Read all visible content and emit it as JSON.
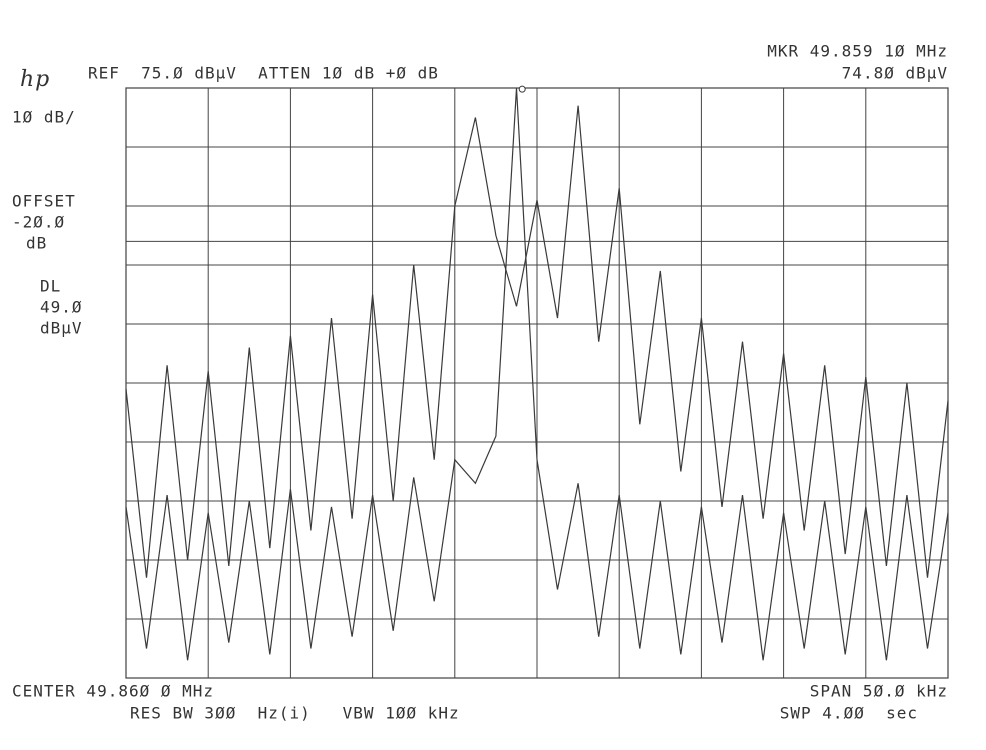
{
  "chart_data": {
    "type": "line",
    "logo": "hp",
    "header_left": "REF  75.Ø dBµV  ATTEN 1Ø dB +Ø dB",
    "marker_label": "MKR 49.859 1Ø MHz",
    "marker_level": "74.8Ø dBµV",
    "scale_label": "1Ø dB/",
    "offset_label": [
      "OFFSET",
      "-2Ø.Ø",
      "dB"
    ],
    "dl_label": [
      "DL",
      "49.Ø",
      "dBµV"
    ],
    "center_label": "CENTER 49.86Ø Ø MHz",
    "span_label": "SPAN 5Ø.Ø kHz",
    "bw_label": "RES BW 3ØØ  Hz(i)   VBW 1ØØ kHz",
    "sweep_label": "SWP 4.ØØ  sec",
    "marker": {
      "x": 49.8591,
      "y": 74.8
    },
    "display_line": 49,
    "x": [
      49.835,
      49.83625,
      49.8375,
      49.83875,
      49.84,
      49.84125,
      49.8425,
      49.84375,
      49.845,
      49.84625,
      49.8475,
      49.84875,
      49.85,
      49.85125,
      49.8525,
      49.85375,
      49.855,
      49.85625,
      49.8575,
      49.85875,
      49.86,
      49.86125,
      49.8625,
      49.86375,
      49.865,
      49.86625,
      49.8675,
      49.86875,
      49.87,
      49.87125,
      49.8725,
      49.87375,
      49.875,
      49.87625,
      49.8775,
      49.87875,
      49.88,
      49.88125,
      49.8825,
      49.88375,
      49.885
    ],
    "series": [
      {
        "color": "#3a3a3a",
        "values": [
          24,
          -8,
          28,
          -5,
          27,
          -6,
          31,
          -3,
          33,
          0,
          36,
          2,
          40,
          5,
          45,
          12,
          55,
          70,
          50,
          38,
          56,
          36,
          72,
          32,
          58,
          18,
          44,
          10,
          36,
          4,
          32,
          2,
          30,
          0,
          28,
          -4,
          26,
          -6,
          25,
          -8,
          22
        ]
      },
      {
        "color": "#3a3a3a",
        "values": [
          4,
          -20,
          6,
          -22,
          3,
          -19,
          5,
          -21,
          7,
          -20,
          4,
          -18,
          6,
          -17,
          9,
          -12,
          12,
          8,
          16,
          75,
          12,
          -10,
          8,
          -18,
          6,
          -20,
          5,
          -21,
          4,
          -19,
          6,
          -22,
          3,
          -20,
          5,
          -21,
          4,
          -22,
          6,
          -20,
          3
        ]
      }
    ],
    "xlim": [
      49.835,
      49.885
    ],
    "ylim": [
      -25,
      75
    ],
    "xticks": [
      49.835,
      49.84,
      49.845,
      49.85,
      49.855,
      49.86,
      49.865,
      49.87,
      49.875,
      49.88,
      49.885
    ],
    "yticks": [
      -25,
      -15,
      -5,
      5,
      15,
      25,
      35,
      45,
      55,
      65,
      75
    ],
    "grid": true
  }
}
